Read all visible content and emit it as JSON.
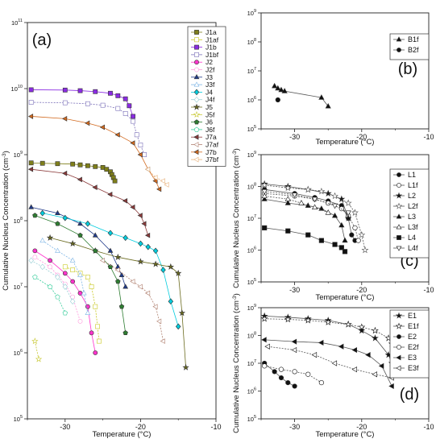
{
  "chart_data": [
    {
      "panel": "(a)",
      "type": "scatter",
      "xlabel": "Temperature (°C)",
      "ylabel": "Cumulative Nucleus Concentration (cm-3)",
      "xlim": [
        -35,
        -10
      ],
      "ylim_log10": [
        5,
        11
      ],
      "xticks": [
        "-30",
        "-20",
        "-10"
      ],
      "ytick_exponents": [
        5,
        6,
        7,
        8,
        9,
        10,
        11
      ],
      "legend_position": "right",
      "series": [
        {
          "name": "J1a",
          "color": "#7f7f1a",
          "marker": "square",
          "x": [
            -34.5,
            -33,
            -31,
            -29,
            -28,
            -27,
            -26,
            -25,
            -24.5,
            -24,
            -23.8,
            -23.6,
            -23.4
          ],
          "y": [
            750000000.0,
            740000000.0,
            730000000.0,
            720000000.0,
            700000000.0,
            680000000.0,
            660000000.0,
            640000000.0,
            600000000.0,
            550000000.0,
            500000000.0,
            450000000.0,
            400000000.0
          ]
        },
        {
          "name": "J1af",
          "color": "#c8c820",
          "marker": "square-open",
          "x": [
            -30,
            -29,
            -28,
            -27,
            -26.5,
            -26,
            -25.7,
            -25.5
          ],
          "y": [
            20000000.0,
            18000000.0,
            16000000.0,
            14000000.0,
            10000000.0,
            5000000.0,
            2500000.0,
            1500000.0
          ]
        },
        {
          "name": "J1b",
          "color": "#8a2be2",
          "marker": "square",
          "x": [
            -34.5,
            -30,
            -28,
            -26,
            -24,
            -23,
            -22,
            -21.5,
            -21
          ],
          "y": [
            9600000000.0,
            9500000000.0,
            9300000000.0,
            9000000000.0,
            8500000000.0,
            7800000000.0,
            7000000000.0,
            5500000000.0,
            3800000000.0
          ]
        },
        {
          "name": "J1bf",
          "color": "#7a6fb8",
          "marker": "square-open",
          "x": [
            -34.5,
            -30,
            -27,
            -25,
            -23,
            -22,
            -21,
            -20.5,
            -20,
            -19.5
          ],
          "y": [
            6200000000.0,
            6100000000.0,
            5900000000.0,
            5600000000.0,
            5000000000.0,
            4200000000.0,
            3200000000.0,
            2000000000.0,
            1400000000.0,
            1000000000.0
          ]
        },
        {
          "name": "J2",
          "color": "#ff33cc",
          "marker": "circle",
          "x": [
            -34,
            -32,
            -30,
            -29,
            -28,
            -27,
            -26.5,
            -26
          ],
          "y": [
            35000000.0,
            25000000.0,
            16000000.0,
            12000000.0,
            8000000.0,
            5000000.0,
            2000000.0,
            1000000.0
          ]
        },
        {
          "name": "J2f",
          "color": "#ff99dd",
          "marker": "circle-open",
          "x": [
            -34,
            -32,
            -31,
            -30,
            -29,
            -28
          ],
          "y": [
            28000000.0,
            20000000.0,
            15000000.0,
            11000000.0,
            7000000.0,
            3000000.0
          ]
        },
        {
          "name": "J3",
          "color": "#1f3a8a",
          "marker": "triangle",
          "x": [
            -34.5,
            -31,
            -28,
            -26,
            -24,
            -23,
            -22.5,
            -22
          ],
          "y": [
            160000000.0,
            130000000.0,
            90000000.0,
            60000000.0,
            35000000.0,
            20000000.0,
            15000000.0,
            10000000.0
          ]
        },
        {
          "name": "J3f",
          "color": "#7fb6e6",
          "marker": "triangle-open",
          "x": [
            -33,
            -31,
            -29,
            -28,
            -27.5,
            -27
          ],
          "y": [
            50000000.0,
            35000000.0,
            25000000.0,
            15000000.0,
            8000000.0,
            4000000.0
          ]
        },
        {
          "name": "J4",
          "color": "#00ccdd",
          "marker": "diamond",
          "x": [
            -33,
            -30,
            -27,
            -24,
            -22,
            -20,
            -19,
            -18,
            -17,
            -16,
            -15
          ],
          "y": [
            130000000.0,
            110000000.0,
            90000000.0,
            65000000.0,
            55000000.0,
            45000000.0,
            40000000.0,
            35000000.0,
            18000000.0,
            6000000.0,
            2500000.0
          ]
        },
        {
          "name": "J4f",
          "color": "#9acfd6",
          "marker": "diamond-open",
          "x": [
            -34.5,
            -33,
            -31,
            -30,
            -29
          ],
          "y": [
            25000000.0,
            20000000.0,
            14000000.0,
            10000000.0,
            6000000.0
          ]
        },
        {
          "name": "J5",
          "color": "#6b6b1f",
          "marker": "star",
          "x": [
            -32,
            -29,
            -26,
            -23,
            -20,
            -18,
            -16,
            -15,
            -14.5,
            -14
          ],
          "y": [
            55000000.0,
            45000000.0,
            35000000.0,
            28000000.0,
            24000000.0,
            22000000.0,
            20000000.0,
            16000000.0,
            4000000.0,
            600000.0
          ]
        },
        {
          "name": "J5f",
          "color": "#c8c832",
          "marker": "star-open",
          "x": [
            -34,
            -33.5
          ],
          "y": [
            1500000.0,
            800000.0
          ]
        },
        {
          "name": "J6",
          "color": "#2e7d32",
          "marker": "pentagon",
          "x": [
            -34,
            -31,
            -28,
            -26,
            -24,
            -23,
            -22.5,
            -22
          ],
          "y": [
            120000000.0,
            90000000.0,
            60000000.0,
            35000000.0,
            20000000.0,
            12000000.0,
            5000000.0,
            2000000.0
          ]
        },
        {
          "name": "J6f",
          "color": "#33cc99",
          "marker": "pentagon-open",
          "x": [
            -34,
            -32,
            -31,
            -30
          ],
          "y": [
            14000000.0,
            10000000.0,
            7000000.0,
            4000000.0
          ]
        },
        {
          "name": "J7a",
          "color": "#8b3a3a",
          "marker": "tri-left",
          "x": [
            -34.5,
            -30,
            -28,
            -26,
            -24,
            -22,
            -21,
            -20,
            -19.5,
            -19
          ],
          "y": [
            600000000.0,
            520000000.0,
            420000000.0,
            320000000.0,
            250000000.0,
            200000000.0,
            160000000.0,
            120000000.0,
            90000000.0,
            60000000.0
          ]
        },
        {
          "name": "J7af",
          "color": "#b08070",
          "marker": "tri-left-open",
          "x": [
            -25,
            -23,
            -21,
            -20,
            -19,
            -18,
            -17.5,
            -17
          ],
          "y": [
            25000000.0,
            18000000.0,
            12000000.0,
            10000000.0,
            8000000.0,
            5000000.0,
            3000000.0,
            1500000.0
          ]
        },
        {
          "name": "J7b",
          "color": "#d2691e",
          "marker": "tri-left",
          "x": [
            -34.5,
            -30,
            -27,
            -25,
            -23,
            -21,
            -20,
            -19,
            -18,
            -17.5
          ],
          "y": [
            3800000000.0,
            3500000000.0,
            3000000000.0,
            2600000000.0,
            2000000000.0,
            1500000000.0,
            1000000000.0,
            600000000.0,
            400000000.0,
            300000000.0
          ]
        },
        {
          "name": "J7bf",
          "color": "#e6b07a",
          "marker": "tri-left-open",
          "x": [
            -19,
            -18,
            -17,
            -16.5
          ],
          "y": [
            600000000.0,
            450000000.0,
            400000000.0,
            350000000.0
          ]
        }
      ]
    },
    {
      "panel": "(b)",
      "type": "scatter",
      "xlabel": "Temperature (°C)",
      "xlim": [
        -35,
        -10
      ],
      "ylim_log10": [
        5,
        9
      ],
      "xticks": [
        "-30",
        "-20",
        "-10"
      ],
      "ytick_exponents": [
        5,
        6,
        7,
        8,
        9
      ],
      "legend_position": "top-right",
      "series": [
        {
          "name": "B1f",
          "color": "#111111",
          "marker": "triangle",
          "x": [
            -33,
            -32.5,
            -32,
            -31.5,
            -26,
            -25
          ],
          "y": [
            3000000.0,
            2500000.0,
            2200000.0,
            2000000.0,
            1200000.0,
            600000.0
          ]
        },
        {
          "name": "B2f",
          "color": "#111111",
          "marker": "circle",
          "x": [
            -32.5
          ],
          "y": [
            1000000.0
          ]
        }
      ]
    },
    {
      "panel": "(c)",
      "type": "scatter",
      "xlabel": "Temperature (°C)",
      "ylabel": "Cumulative Nucleus Concentration (cm-3)",
      "xlim": [
        -35,
        -10
      ],
      "ylim_log10": [
        5,
        9
      ],
      "xticks": [
        "-30",
        "-20",
        "-10"
      ],
      "ytick_exponents": [
        5,
        6,
        7,
        8,
        9
      ],
      "legend_position": "top-right",
      "series": [
        {
          "name": "L1",
          "color": "#111111",
          "marker": "circle",
          "x": [
            -34.5,
            -30,
            -27,
            -25,
            -23,
            -22,
            -21.5,
            -21
          ],
          "y": [
            80000000.0,
            60000000.0,
            45000000.0,
            35000000.0,
            25000000.0,
            10000000.0,
            3000000.0,
            2000000.0
          ]
        },
        {
          "name": "L1f",
          "color": "#111111",
          "marker": "circle-open",
          "x": [
            -34.5,
            -30,
            -27,
            -25,
            -23,
            -22,
            -21,
            -20.5
          ],
          "y": [
            60000000.0,
            50000000.0,
            40000000.0,
            30000000.0,
            20000000.0,
            12000000.0,
            5000000.0,
            2000000.0
          ]
        },
        {
          "name": "L2",
          "color": "#111111",
          "marker": "star",
          "x": [
            -34.5,
            -31,
            -28,
            -25,
            -23,
            -22
          ],
          "y": [
            120000000.0,
            100000000.0,
            80000000.0,
            60000000.0,
            40000000.0,
            10000000.0
          ]
        },
        {
          "name": "L2f",
          "color": "#555555",
          "marker": "star-open",
          "x": [
            -34.5,
            -31,
            -28,
            -26,
            -24,
            -22,
            -21,
            -20,
            -19.5
          ],
          "y": [
            110000000.0,
            90000000.0,
            80000000.0,
            70000000.0,
            50000000.0,
            30000000.0,
            15000000.0,
            3000000.0,
            1000000.0
          ]
        },
        {
          "name": "L3",
          "color": "#111111",
          "marker": "triangle",
          "x": [
            -34.5,
            -31,
            -28,
            -26,
            -24,
            -23,
            -22.5
          ],
          "y": [
            40000000.0,
            30000000.0,
            25000000.0,
            20000000.0,
            12000000.0,
            6000000.0,
            2000000.0
          ]
        },
        {
          "name": "L3f",
          "color": "#111111",
          "marker": "triangle-open",
          "x": [
            -34.5,
            -31,
            -29,
            -27,
            -25
          ],
          "y": [
            50000000.0,
            40000000.0,
            30000000.0,
            22000000.0,
            15000000.0
          ]
        },
        {
          "name": "L4",
          "color": "#111111",
          "marker": "square",
          "x": [
            -34.5,
            -31,
            -28,
            -26,
            -24,
            -23,
            -22.5
          ],
          "y": [
            5000000.0,
            4000000.0,
            3000000.0,
            2000000.0,
            1500000.0,
            1200000.0,
            900000.0
          ]
        },
        {
          "name": "L4f",
          "color": "#111111",
          "marker": "tri-down-open",
          "x": [
            -34.5,
            -30,
            -27,
            -24,
            -22
          ],
          "y": [
            70000000.0,
            55000000.0,
            40000000.0,
            25000000.0,
            15000000.0
          ]
        }
      ]
    },
    {
      "panel": "(d)",
      "type": "scatter",
      "xlabel": "Temperature (°C)",
      "ylabel": "Cumulative Nucleus Concentration (cm-3)",
      "xlim": [
        -35,
        -10
      ],
      "ylim_log10": [
        5,
        9
      ],
      "xticks": [
        "-30",
        "-20",
        "-10"
      ],
      "ytick_exponents": [
        5,
        6,
        7,
        8,
        9
      ],
      "legend_position": "top-right",
      "series": [
        {
          "name": "E1",
          "color": "#111111",
          "marker": "star",
          "x": [
            -34.5,
            -31,
            -28,
            -25,
            -22,
            -20,
            -18,
            -16,
            -15.5
          ],
          "y": [
            500000000.0,
            450000000.0,
            400000000.0,
            350000000.0,
            250000000.0,
            150000000.0,
            80000000.0,
            20000000.0,
            10000000.0
          ]
        },
        {
          "name": "E1f",
          "color": "#111111",
          "marker": "star-open",
          "x": [
            -34.5,
            -31,
            -28,
            -25,
            -22,
            -20,
            -18,
            -16,
            -15.5
          ],
          "y": [
            400000000.0,
            380000000.0,
            350000000.0,
            300000000.0,
            250000000.0,
            200000000.0,
            150000000.0,
            80000000.0,
            50000000.0
          ]
        },
        {
          "name": "E2",
          "color": "#111111",
          "marker": "circle",
          "x": [
            -34.5,
            -33,
            -32,
            -31,
            -30
          ],
          "y": [
            10000000.0,
            5000000.0,
            3000000.0,
            2000000.0,
            1500000.0
          ]
        },
        {
          "name": "E2f",
          "color": "#111111",
          "marker": "circle-open",
          "x": [
            -34.5,
            -32,
            -30,
            -28,
            -26
          ],
          "y": [
            8000000.0,
            6000000.0,
            5000000.0,
            4000000.0,
            2000000.0
          ]
        },
        {
          "name": "E3",
          "color": "#111111",
          "marker": "tri-left",
          "x": [
            -34.5,
            -30,
            -26,
            -23,
            -21,
            -19,
            -17,
            -15.5
          ],
          "y": [
            70000000.0,
            60000000.0,
            55000000.0,
            40000000.0,
            30000000.0,
            20000000.0,
            8000000.0,
            1500000.0
          ]
        },
        {
          "name": "E3f",
          "color": "#111111",
          "marker": "tri-left-open",
          "x": [
            -34,
            -30,
            -27,
            -24,
            -21,
            -18,
            -15.5
          ],
          "y": [
            40000000.0,
            30000000.0,
            20000000.0,
            10000000.0,
            6000000.0,
            4000000.0,
            3000000.0
          ]
        }
      ]
    }
  ]
}
